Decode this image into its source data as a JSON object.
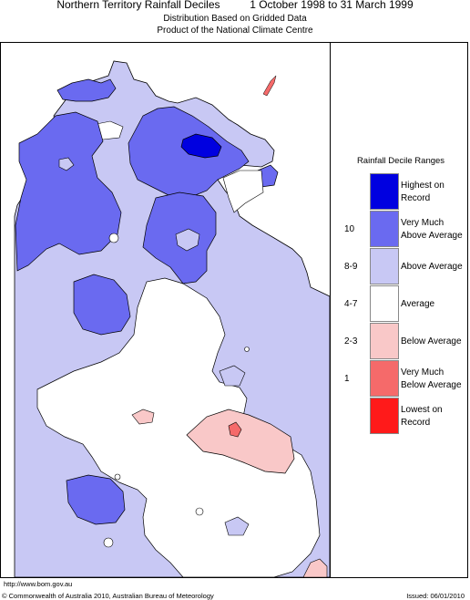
{
  "header": {
    "title": "Northern Territory Rainfall Deciles",
    "period": "1 October 1998 to 31 March 1999",
    "subtitle_line1": "Distribution Based on Gridded Data",
    "subtitle_line2": "Product of the National Climate Centre"
  },
  "legend": {
    "title": "Rainfall Decile Ranges",
    "rows": [
      {
        "code": "",
        "label": "Highest on Record",
        "color": "#0000e0"
      },
      {
        "code": "10",
        "label": "Very Much Above Average",
        "color": "#6a6af0"
      },
      {
        "code": "8-9",
        "label": "Above Average",
        "color": "#c8c8f4"
      },
      {
        "code": "4-7",
        "label": "Average",
        "color": "#ffffff"
      },
      {
        "code": "2-3",
        "label": "Below Average",
        "color": "#f9c8c8"
      },
      {
        "code": "1",
        "label": "Very Much Below Average",
        "color": "#f56a6a"
      },
      {
        "code": "",
        "label": "Lowest on Record",
        "color": "#ff1a1a"
      }
    ]
  },
  "footer": {
    "url": "http://www.bom.gov.au",
    "copyright": "© Commonwealth of Australia 2010, Australian Bureau of Meteorology",
    "issued": "Issued: 06/01/2010"
  }
}
